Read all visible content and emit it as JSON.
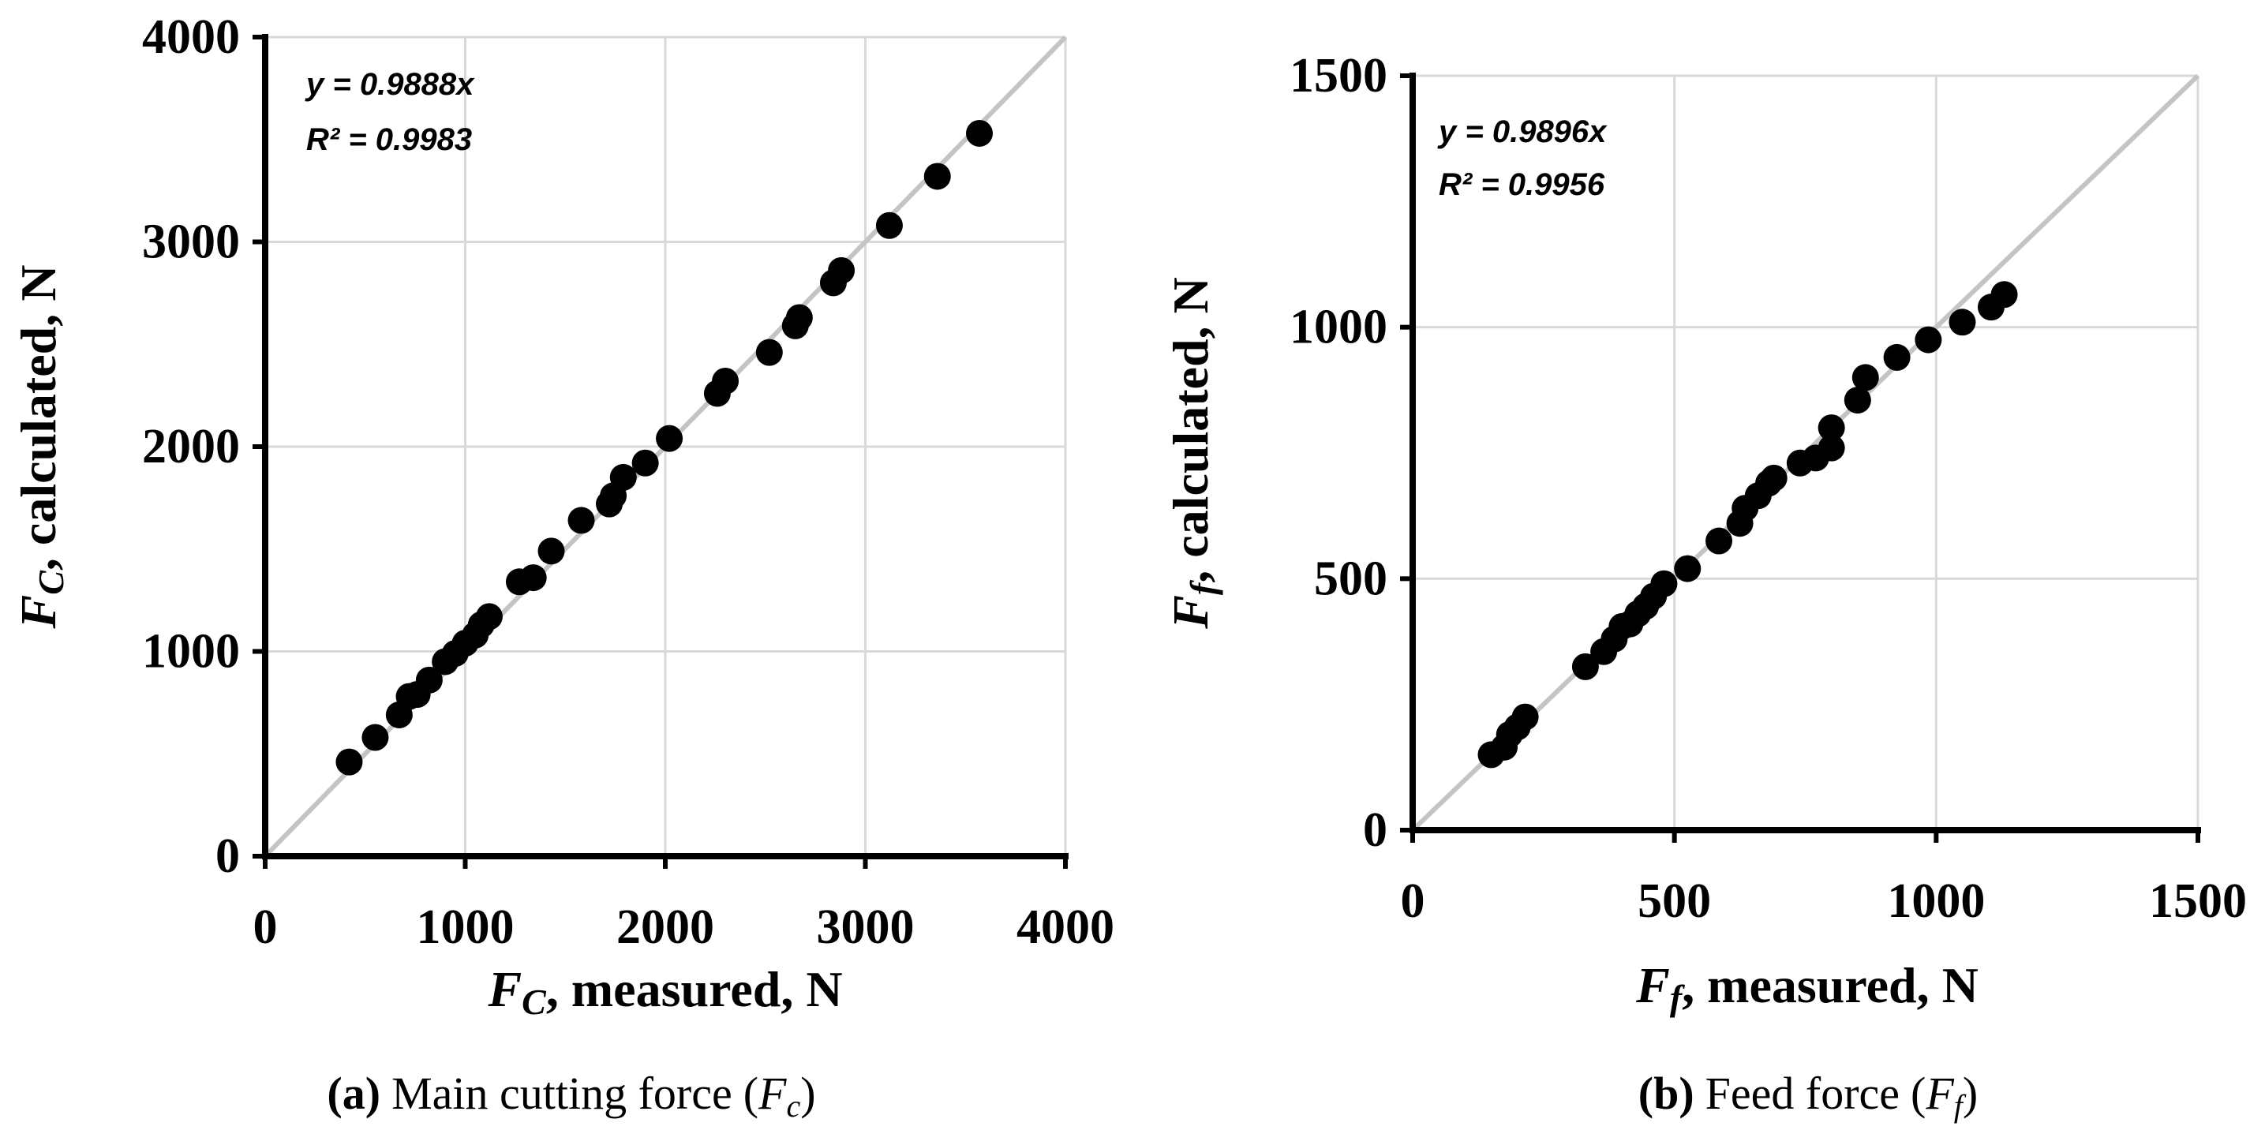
{
  "chart_data": [
    {
      "type": "scatter",
      "panel_id": "a",
      "caption_tag": "(a)",
      "caption_text": "Main cutting force",
      "caption_symbol": "F",
      "caption_subscript": "c",
      "xlabel_symbol": "F",
      "xlabel_subscript": "C",
      "xlabel_rest": ", measured, N",
      "ylabel_symbol": "F",
      "ylabel_subscript": "C",
      "ylabel_rest": ", calculated, N",
      "xlim": [
        0,
        4000
      ],
      "ylim": [
        0,
        4000
      ],
      "xticks": [
        0,
        1000,
        2000,
        3000,
        4000
      ],
      "yticks": [
        0,
        1000,
        2000,
        3000,
        4000
      ],
      "grid": true,
      "equation": "y = 0.9888x",
      "r2_label": "R² = 0.9983",
      "reference_line": [
        [
          0,
          0
        ],
        [
          4000,
          4000
        ]
      ],
      "points": [
        [
          420,
          460
        ],
        [
          550,
          580
        ],
        [
          670,
          690
        ],
        [
          720,
          780
        ],
        [
          760,
          790
        ],
        [
          820,
          860
        ],
        [
          900,
          950
        ],
        [
          950,
          990
        ],
        [
          1000,
          1040
        ],
        [
          1050,
          1080
        ],
        [
          1080,
          1130
        ],
        [
          1120,
          1170
        ],
        [
          1270,
          1340
        ],
        [
          1340,
          1360
        ],
        [
          1430,
          1490
        ],
        [
          1580,
          1640
        ],
        [
          1720,
          1720
        ],
        [
          1740,
          1760
        ],
        [
          1790,
          1850
        ],
        [
          1900,
          1920
        ],
        [
          2020,
          2040
        ],
        [
          2260,
          2260
        ],
        [
          2300,
          2320
        ],
        [
          2520,
          2460
        ],
        [
          2650,
          2590
        ],
        [
          2670,
          2630
        ],
        [
          2840,
          2800
        ],
        [
          2880,
          2860
        ],
        [
          3120,
          3080
        ],
        [
          3360,
          3320
        ],
        [
          3570,
          3530
        ]
      ]
    },
    {
      "type": "scatter",
      "panel_id": "b",
      "caption_tag": "(b)",
      "caption_text": "Feed force",
      "caption_symbol": "F",
      "caption_subscript": "f",
      "xlabel_symbol": "F",
      "xlabel_subscript": "f",
      "xlabel_rest": ", measured, N",
      "ylabel_symbol": "F",
      "ylabel_subscript": "f",
      "ylabel_rest": ", calculated, N",
      "xlim": [
        0,
        1500
      ],
      "ylim": [
        0,
        1500
      ],
      "xticks": [
        0,
        500,
        1000,
        1500
      ],
      "yticks": [
        0,
        500,
        1000,
        1500
      ],
      "grid": true,
      "equation": "y = 0.9896x",
      "r2_label": "R² = 0.9956",
      "reference_line": [
        [
          0,
          0
        ],
        [
          1500,
          1500
        ]
      ],
      "points": [
        [
          150,
          150
        ],
        [
          175,
          165
        ],
        [
          185,
          190
        ],
        [
          200,
          205
        ],
        [
          215,
          225
        ],
        [
          330,
          325
        ],
        [
          365,
          355
        ],
        [
          385,
          380
        ],
        [
          400,
          405
        ],
        [
          415,
          410
        ],
        [
          430,
          430
        ],
        [
          445,
          445
        ],
        [
          460,
          465
        ],
        [
          480,
          490
        ],
        [
          525,
          520
        ],
        [
          585,
          575
        ],
        [
          625,
          610
        ],
        [
          635,
          640
        ],
        [
          660,
          665
        ],
        [
          680,
          690
        ],
        [
          690,
          700
        ],
        [
          740,
          730
        ],
        [
          770,
          740
        ],
        [
          800,
          760
        ],
        [
          800,
          800
        ],
        [
          850,
          855
        ],
        [
          865,
          900
        ],
        [
          925,
          940
        ],
        [
          985,
          975
        ],
        [
          1050,
          1010
        ],
        [
          1105,
          1040
        ],
        [
          1130,
          1065
        ]
      ]
    }
  ]
}
